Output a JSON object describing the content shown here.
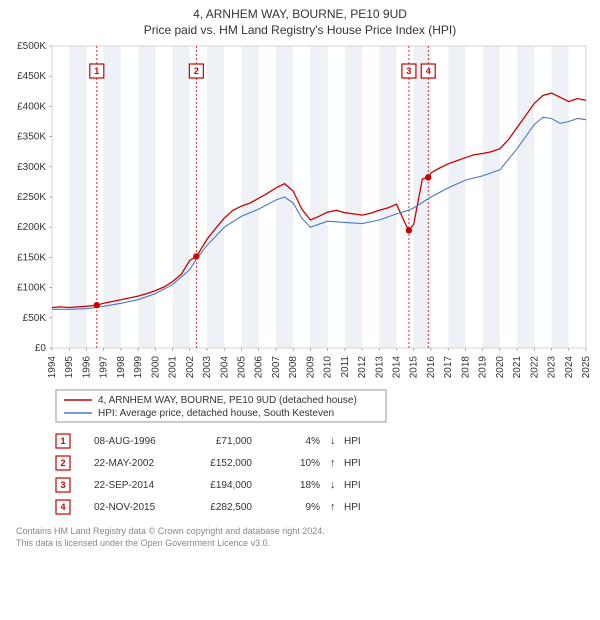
{
  "title_line1": "4, ARNHEM WAY, BOURNE, PE10 9UD",
  "title_line2": "Price paid vs. HM Land Registry's House Price Index (HPI)",
  "chart": {
    "type": "line",
    "background_color": "#ffffff",
    "band_color": "#eef2f7",
    "plot_border_color": "#bbbbbb",
    "y": {
      "min": 0,
      "max": 500,
      "step": 50,
      "label_prefix": "£",
      "label_suffix": "K",
      "fontsize": 10
    },
    "x": {
      "min": 1994,
      "max": 2025,
      "step": 1,
      "rotate": -90,
      "fontsize": 10
    },
    "series": [
      {
        "name": "price_paid",
        "label": "4, ARNHEM WAY, BOURNE, PE10 9UD (detached house)",
        "color": "#cc0000",
        "width": 1.3,
        "points": [
          [
            1994.0,
            67
          ],
          [
            1994.5,
            68
          ],
          [
            1995.0,
            67
          ],
          [
            1995.5,
            68
          ],
          [
            1996.0,
            69
          ],
          [
            1996.6,
            71
          ],
          [
            1997.0,
            74
          ],
          [
            1997.5,
            77
          ],
          [
            1998.0,
            80
          ],
          [
            1998.5,
            83
          ],
          [
            1999.0,
            86
          ],
          [
            1999.5,
            90
          ],
          [
            2000.0,
            95
          ],
          [
            2000.5,
            101
          ],
          [
            2001.0,
            110
          ],
          [
            2001.5,
            122
          ],
          [
            2002.0,
            145
          ],
          [
            2002.4,
            152
          ],
          [
            2003.0,
            180
          ],
          [
            2003.5,
            198
          ],
          [
            2004.0,
            215
          ],
          [
            2004.5,
            228
          ],
          [
            2005.0,
            235
          ],
          [
            2005.5,
            240
          ],
          [
            2006.0,
            248
          ],
          [
            2006.5,
            256
          ],
          [
            2007.0,
            265
          ],
          [
            2007.5,
            272
          ],
          [
            2008.0,
            260
          ],
          [
            2008.5,
            230
          ],
          [
            2009.0,
            212
          ],
          [
            2009.5,
            218
          ],
          [
            2010.0,
            225
          ],
          [
            2010.5,
            228
          ],
          [
            2011.0,
            224
          ],
          [
            2011.5,
            222
          ],
          [
            2012.0,
            220
          ],
          [
            2012.5,
            223
          ],
          [
            2013.0,
            228
          ],
          [
            2013.5,
            232
          ],
          [
            2014.0,
            238
          ],
          [
            2014.7,
            194
          ],
          [
            2015.0,
            205
          ],
          [
            2015.5,
            280
          ],
          [
            2015.84,
            282.5
          ],
          [
            2016.0,
            290
          ],
          [
            2016.5,
            298
          ],
          [
            2017.0,
            305
          ],
          [
            2017.5,
            310
          ],
          [
            2018.0,
            315
          ],
          [
            2018.5,
            320
          ],
          [
            2019.0,
            322
          ],
          [
            2019.5,
            325
          ],
          [
            2020.0,
            330
          ],
          [
            2020.5,
            345
          ],
          [
            2021.0,
            365
          ],
          [
            2021.5,
            385
          ],
          [
            2022.0,
            405
          ],
          [
            2022.5,
            418
          ],
          [
            2023.0,
            422
          ],
          [
            2023.5,
            415
          ],
          [
            2024.0,
            408
          ],
          [
            2024.5,
            413
          ],
          [
            2025.0,
            410
          ]
        ]
      },
      {
        "name": "hpi",
        "label": "HPI: Average price, detached house, South Kesteven",
        "color": "#4a77c4",
        "width": 1.1,
        "points": [
          [
            1994.0,
            64
          ],
          [
            1995.0,
            64
          ],
          [
            1996.0,
            65
          ],
          [
            1997.0,
            69
          ],
          [
            1998.0,
            74
          ],
          [
            1999.0,
            80
          ],
          [
            2000.0,
            90
          ],
          [
            2001.0,
            105
          ],
          [
            2002.0,
            130
          ],
          [
            2002.4,
            148
          ],
          [
            2003.0,
            170
          ],
          [
            2004.0,
            200
          ],
          [
            2005.0,
            218
          ],
          [
            2006.0,
            230
          ],
          [
            2007.0,
            245
          ],
          [
            2007.5,
            250
          ],
          [
            2008.0,
            240
          ],
          [
            2008.5,
            215
          ],
          [
            2009.0,
            200
          ],
          [
            2010.0,
            210
          ],
          [
            2011.0,
            208
          ],
          [
            2012.0,
            206
          ],
          [
            2013.0,
            212
          ],
          [
            2014.0,
            222
          ],
          [
            2014.7,
            228
          ],
          [
            2015.0,
            232
          ],
          [
            2016.0,
            250
          ],
          [
            2017.0,
            265
          ],
          [
            2018.0,
            278
          ],
          [
            2019.0,
            285
          ],
          [
            2020.0,
            295
          ],
          [
            2021.0,
            330
          ],
          [
            2022.0,
            370
          ],
          [
            2022.5,
            382
          ],
          [
            2023.0,
            380
          ],
          [
            2023.5,
            372
          ],
          [
            2024.0,
            375
          ],
          [
            2024.5,
            380
          ],
          [
            2025.0,
            378
          ]
        ]
      }
    ],
    "sale_markers": [
      {
        "n": "1",
        "year": 1996.6
      },
      {
        "n": "2",
        "year": 2002.38
      },
      {
        "n": "3",
        "year": 2014.72
      },
      {
        "n": "4",
        "year": 2015.84
      }
    ],
    "marker_line_color": "#cc0000",
    "marker_line_dash": "2,2",
    "marker_box_stroke": "#cc0000",
    "marker_box_fill": "#ffffff"
  },
  "legend": {
    "border_color": "#999999",
    "items": [
      {
        "color": "#cc0000",
        "text": "4, ARNHEM WAY, BOURNE, PE10 9UD (detached house)"
      },
      {
        "color": "#4a77c4",
        "text": "HPI: Average price, detached house, South Kesteven"
      }
    ]
  },
  "transactions_table": {
    "rows": [
      {
        "n": "1",
        "date": "08-AUG-1996",
        "price": "£71,000",
        "pct": "4%",
        "arrow": "↓",
        "tag": "HPI"
      },
      {
        "n": "2",
        "date": "22-MAY-2002",
        "price": "£152,000",
        "pct": "10%",
        "arrow": "↑",
        "tag": "HPI"
      },
      {
        "n": "3",
        "date": "22-SEP-2014",
        "price": "£194,000",
        "pct": "18%",
        "arrow": "↓",
        "tag": "HPI"
      },
      {
        "n": "4",
        "date": "02-NOV-2015",
        "price": "£282,500",
        "pct": "9%",
        "arrow": "↑",
        "tag": "HPI"
      }
    ]
  },
  "footer": {
    "line1": "Contains HM Land Registry data © Crown copyright and database right 2024.",
    "line2": "This data is licensed under the Open Government Licence v3.0."
  }
}
